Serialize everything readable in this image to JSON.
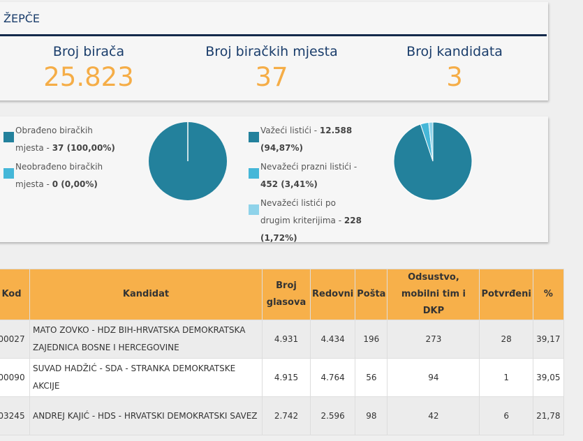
{
  "header": {
    "title": "ŽEPČE"
  },
  "stats": [
    {
      "label": "Broj birača",
      "value": "25.823"
    },
    {
      "label": "Broj biračkih mjesta",
      "value": "37"
    },
    {
      "label": "Broj kandidata",
      "value": "3"
    }
  ],
  "charts": [
    {
      "type": "pie",
      "items": [
        {
          "name": "Obrađeno biračkih mjesta -",
          "value": 37,
          "value_label": "37 (100,00%)",
          "color": "#23819c"
        },
        {
          "name": "Neobrađeno biračkih mjesta -",
          "value": 0,
          "value_label": "0 (0,00%)",
          "color": "#45b7d8"
        }
      ]
    },
    {
      "type": "pie",
      "items": [
        {
          "name": "Važeći listići -",
          "value": 12588,
          "value_label": "12.588 (94,87%)",
          "color": "#23819c"
        },
        {
          "name": "Nevažeći prazni listići -",
          "value": 452,
          "value_label": "452 (3,41%)",
          "color": "#45b7d8"
        },
        {
          "name": "Nevažeći listići po drugim kriterijima -",
          "value": 228,
          "value_label": "228 (1,72%)",
          "color": "#8fd3ea"
        }
      ]
    }
  ],
  "table": {
    "headers": [
      "Kod",
      "Kandidat",
      "Broj glasova",
      "Redovni",
      "Pošta",
      "Odsustvo, mobilni tim i DKP",
      "Potvrđeni",
      "%"
    ],
    "rows": [
      [
        "00027",
        "MATO ZOVKO - HDZ BIH-HRVATSKA DEMOKRATSKA ZAJEDNICA BOSNE I HERCEGOVINE",
        "4.931",
        "4.434",
        "196",
        "273",
        "28",
        "39,17"
      ],
      [
        "00090",
        "SUVAD HADŽIĆ - SDA - STRANKA DEMOKRATSKE AKCIJE",
        "4.915",
        "4.764",
        "56",
        "94",
        "1",
        "39,05"
      ],
      [
        "03245",
        "ANDREJ KAJIĆ - HDS - HRVATSKI DEMOKRATSKI SAVEZ",
        "2.742",
        "2.596",
        "98",
        "42",
        "6",
        "21,78"
      ]
    ]
  }
}
